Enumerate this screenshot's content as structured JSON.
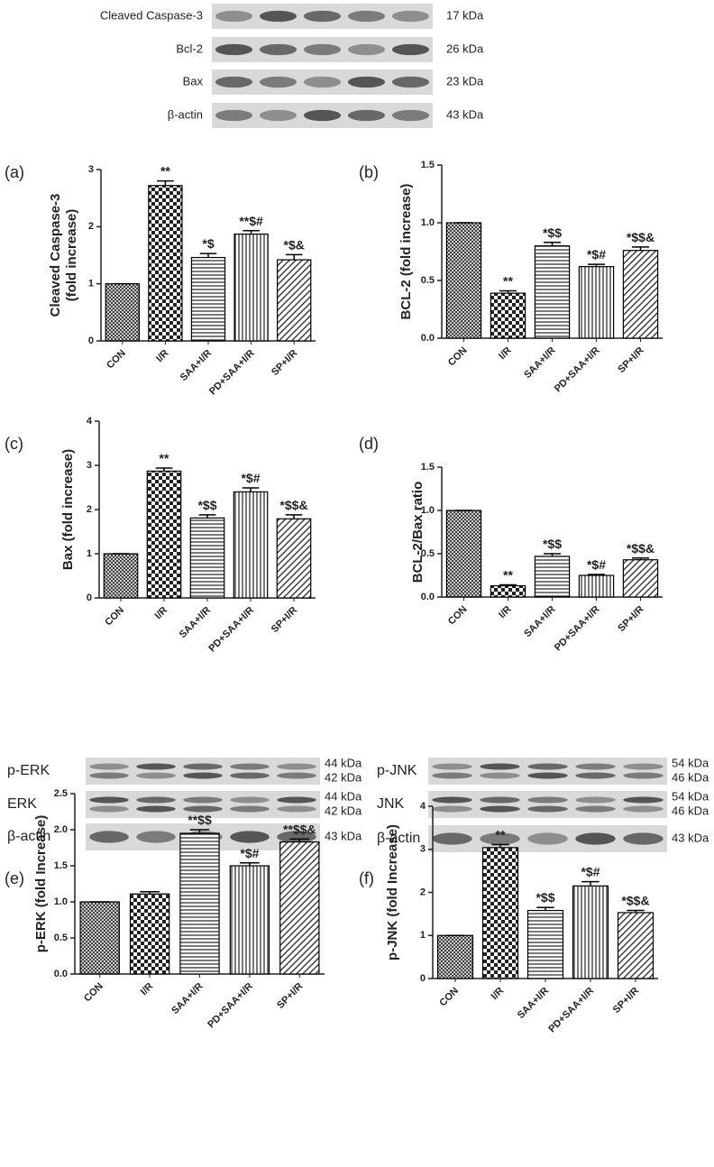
{
  "blots_top": {
    "rows": [
      {
        "label": "Cleaved Caspase-3",
        "kda": [
          "17 kDa"
        ]
      },
      {
        "label": "Bcl-2",
        "kda": [
          "26 kDa"
        ]
      },
      {
        "label": "Bax",
        "kda": [
          "23 kDa"
        ]
      },
      {
        "label": "β-actin",
        "kda": [
          "43 kDa"
        ]
      }
    ]
  },
  "blots_bottom": {
    "left": {
      "rows": [
        {
          "label": "p-ERK",
          "kda": [
            "44 kDa",
            "42 kDa"
          ]
        },
        {
          "label": "ERK",
          "kda": [
            "44 kDa",
            "42 kDa"
          ]
        },
        {
          "label": "β-actin",
          "kda": [
            "43 kDa"
          ]
        }
      ]
    },
    "right": {
      "rows": [
        {
          "label": "p-JNK",
          "kda": [
            "54 kDa",
            "46 kDa"
          ]
        },
        {
          "label": "JNK",
          "kda": [
            "54 kDa",
            "46 kDa"
          ]
        },
        {
          "label": "β-actin",
          "kda": [
            "43 kDa"
          ]
        }
      ]
    }
  },
  "chart_data": [
    {
      "type": "bar",
      "panel": "(a)",
      "ylabel": [
        "Cleaved Caspase-3",
        "(fold increase)"
      ],
      "categories": [
        "CON",
        "I/R",
        "SAA+I/R",
        "PD+SAA+I/R",
        "SP+I/R"
      ],
      "values": [
        1,
        2.72,
        1.46,
        1.87,
        1.42
      ],
      "errors": [
        0,
        0.08,
        0.07,
        0.06,
        0.09
      ],
      "annotations": [
        null,
        "**",
        "*$",
        "**$#",
        "*$&"
      ],
      "ylim": [
        0,
        3
      ],
      "yticks": [
        0,
        1,
        2,
        3
      ],
      "color": "#000000"
    },
    {
      "type": "bar",
      "panel": "(b)",
      "ylabel": "BCL-2 (fold increase)",
      "categories": [
        "CON",
        "I/R",
        "SAA+I/R",
        "PD+SAA+I/R",
        "SP+I/R"
      ],
      "values": [
        1.0,
        0.39,
        0.8,
        0.62,
        0.76
      ],
      "errors": [
        0,
        0.02,
        0.03,
        0.02,
        0.03
      ],
      "annotations": [
        null,
        "**",
        "*$$",
        "*$#",
        "*$$&"
      ],
      "ylim": [
        0,
        1.5
      ],
      "yticks": [
        {
          "value": 0,
          "label": "0.0"
        },
        0.5,
        {
          "value": 1,
          "label": "1.0"
        },
        1.5
      ],
      "color": "#000000"
    },
    {
      "type": "bar",
      "panel": "(c)",
      "ylabel": "Bax (fold increase)",
      "categories": [
        "CON",
        "I/R",
        "SAA+I/R",
        "PD+SAA+I/R",
        "SP+I/R"
      ],
      "values": [
        1.0,
        2.87,
        1.81,
        2.4,
        1.79
      ],
      "errors": [
        0,
        0.07,
        0.07,
        0.09,
        0.09
      ],
      "annotations": [
        null,
        "**",
        "*$$",
        "*$#",
        "*$$&"
      ],
      "ylim": [
        0,
        4
      ],
      "yticks": [
        0,
        1,
        2,
        3,
        4
      ],
      "color": "#000000"
    },
    {
      "type": "bar",
      "panel": "(d)",
      "ylabel": "BCL-2/Bax ratio",
      "categories": [
        "CON",
        "I/R",
        "SAA+I/R",
        "PD+SAA+I/R",
        "SP+I/R"
      ],
      "values": [
        1.0,
        0.13,
        0.47,
        0.25,
        0.43
      ],
      "errors": [
        0,
        0.01,
        0.03,
        0.01,
        0.02
      ],
      "annotations": [
        null,
        "**",
        "*$$",
        "*$#",
        "*$$&"
      ],
      "ylim": [
        0,
        1.5
      ],
      "yticks": [
        {
          "value": 0,
          "label": "0.0"
        },
        0.5,
        {
          "value": 1,
          "label": "1.0"
        },
        1.5
      ],
      "color": "#000000"
    },
    {
      "type": "bar",
      "panel": "(e)",
      "ylabel": "p-ERK (fold Increase)",
      "categories": [
        "CON",
        "I/R",
        "SAA+I/R",
        "PD+SAA+I/R",
        "SP+I/R"
      ],
      "values": [
        1.0,
        1.11,
        1.95,
        1.5,
        1.83
      ],
      "errors": [
        0,
        0.03,
        0.05,
        0.04,
        0.04
      ],
      "annotations": [
        null,
        null,
        "**$$",
        "*$#",
        "**$$&"
      ],
      "ylim": [
        0,
        2.5
      ],
      "yticks": [
        {
          "value": 0,
          "label": "0.0"
        },
        0.5,
        {
          "value": 1,
          "label": "1.0"
        },
        1.5,
        {
          "value": 2,
          "label": "2.0"
        },
        2.5
      ],
      "color": "#000000"
    },
    {
      "type": "bar",
      "panel": "(f)",
      "ylabel": "p-JNK (fold Increase)",
      "categories": [
        "CON",
        "I/R",
        "SAA+I/R",
        "PD+SAA+I/R",
        "SP+I/R"
      ],
      "values": [
        1.0,
        3.04,
        1.58,
        2.15,
        1.53
      ],
      "errors": [
        0,
        0.07,
        0.07,
        0.1,
        0.05
      ],
      "annotations": [
        null,
        "**",
        "*$$",
        "*$#",
        "*$$&"
      ],
      "ylim": [
        0,
        4
      ],
      "yticks": [
        0,
        1,
        2,
        3,
        4
      ],
      "color": "#000000"
    }
  ]
}
